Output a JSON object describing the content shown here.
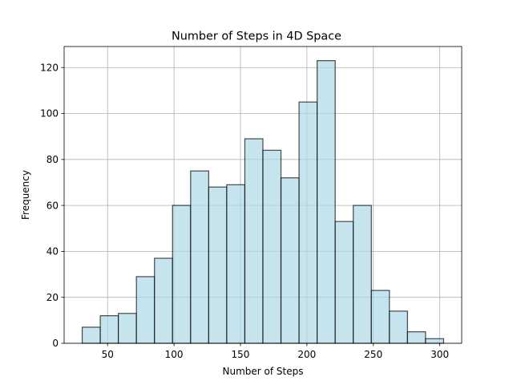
{
  "chart_data": {
    "type": "bar",
    "histogram": true,
    "title": "Number of Steps in 4D Space",
    "xlabel": "Number of Steps",
    "ylabel": "Frequency",
    "bins": [
      {
        "start": 30.9,
        "end": 44.5,
        "count": 7
      },
      {
        "start": 44.5,
        "end": 58.1,
        "count": 12
      },
      {
        "start": 58.1,
        "end": 71.7,
        "count": 13
      },
      {
        "start": 71.7,
        "end": 85.3,
        "count": 29
      },
      {
        "start": 85.3,
        "end": 98.9,
        "count": 37
      },
      {
        "start": 98.9,
        "end": 112.5,
        "count": 60
      },
      {
        "start": 112.5,
        "end": 126.1,
        "count": 75
      },
      {
        "start": 126.1,
        "end": 139.7,
        "count": 68
      },
      {
        "start": 139.7,
        "end": 153.3,
        "count": 69
      },
      {
        "start": 153.3,
        "end": 166.9,
        "count": 89
      },
      {
        "start": 166.9,
        "end": 180.5,
        "count": 84
      },
      {
        "start": 180.5,
        "end": 194.1,
        "count": 72
      },
      {
        "start": 194.1,
        "end": 207.7,
        "count": 105
      },
      {
        "start": 207.7,
        "end": 221.3,
        "count": 123
      },
      {
        "start": 221.3,
        "end": 234.9,
        "count": 53
      },
      {
        "start": 234.9,
        "end": 248.5,
        "count": 60
      },
      {
        "start": 248.5,
        "end": 262.1,
        "count": 23
      },
      {
        "start": 262.1,
        "end": 275.7,
        "count": 14
      },
      {
        "start": 275.7,
        "end": 289.3,
        "count": 5
      },
      {
        "start": 289.3,
        "end": 302.9,
        "count": 2
      }
    ],
    "xlim": [
      17.3,
      316.5
    ],
    "ylim": [
      0,
      129.15
    ],
    "xticks": [
      50,
      100,
      150,
      200,
      250,
      300
    ],
    "yticks": [
      0,
      20,
      40,
      60,
      80,
      100,
      120
    ],
    "grid": true,
    "bar_color": "#add8e6",
    "edge_color": "#000000"
  }
}
